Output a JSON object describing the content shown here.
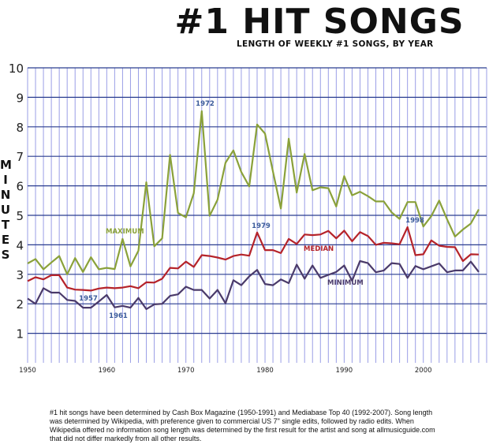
{
  "title": "#1 HIT SONGS",
  "subtitle": "LENGTH OF WEEKLY #1 SONGS, BY YEAR",
  "y_axis_label": "MINUTES",
  "footnote": "#1 hit songs have been determined by Cash Box Magazine (1950-1991) and Mediabase Top 40 (1992-2007). Song length was determined by Wikipedia, with preference given to commercial US 7\" single edits, followed by radio edits. When Wikipedia offered no information song length was determined by the first result for the artist and song at allmusicguide.com that did not differ markedly from all other results.",
  "colors": {
    "maximum": "#8aa13a",
    "median": "#b5232a",
    "minimum": "#4a3a6a",
    "grid": "#9a9ee6",
    "hgrid": "#2a3d8f",
    "annotation": "#3a5a9a"
  },
  "chart_data": {
    "type": "line",
    "xlim": [
      1950,
      2008
    ],
    "ylim": [
      0,
      10
    ],
    "x_ticks": [
      1950,
      1960,
      1970,
      1980,
      1990,
      2000
    ],
    "y_ticks": [
      1,
      2,
      3,
      4,
      5,
      6,
      7,
      8,
      9,
      10
    ],
    "x": [
      1950,
      1951,
      1952,
      1953,
      1954,
      1955,
      1956,
      1957,
      1958,
      1959,
      1960,
      1961,
      1962,
      1963,
      1964,
      1965,
      1966,
      1967,
      1968,
      1969,
      1970,
      1971,
      1972,
      1973,
      1974,
      1975,
      1976,
      1977,
      1978,
      1979,
      1980,
      1981,
      1982,
      1983,
      1984,
      1985,
      1986,
      1987,
      1988,
      1989,
      1990,
      1991,
      1992,
      1993,
      1994,
      1995,
      1996,
      1997,
      1998,
      1999,
      2000,
      2001,
      2002,
      2003,
      2004,
      2005,
      2006,
      2007
    ],
    "series": [
      {
        "name": "MAXIMUM",
        "key": "maximum",
        "values": [
          3.37,
          3.52,
          3.17,
          3.4,
          3.62,
          3.0,
          3.55,
          3.08,
          3.58,
          3.17,
          3.22,
          3.18,
          4.2,
          3.27,
          3.8,
          6.12,
          3.95,
          4.22,
          7.05,
          5.08,
          4.93,
          5.75,
          8.53,
          4.98,
          5.53,
          6.78,
          7.2,
          6.47,
          5.98,
          8.08,
          7.77,
          6.48,
          5.23,
          7.6,
          5.77,
          7.08,
          5.85,
          5.95,
          5.92,
          5.3,
          6.33,
          5.68,
          5.8,
          5.65,
          5.47,
          5.47,
          5.1,
          4.88,
          5.45,
          5.45,
          4.62,
          4.97,
          5.5,
          4.87,
          4.28,
          4.52,
          4.72,
          5.2
        ]
      },
      {
        "name": "MEDIAN",
        "key": "median",
        "values": [
          2.77,
          2.9,
          2.83,
          2.97,
          2.97,
          2.55,
          2.48,
          2.47,
          2.45,
          2.52,
          2.55,
          2.53,
          2.55,
          2.6,
          2.53,
          2.73,
          2.72,
          2.85,
          3.22,
          3.2,
          3.43,
          3.25,
          3.65,
          3.62,
          3.57,
          3.5,
          3.62,
          3.67,
          3.63,
          4.42,
          3.82,
          3.82,
          3.72,
          4.2,
          4.03,
          4.35,
          4.33,
          4.35,
          4.47,
          4.22,
          4.48,
          4.12,
          4.43,
          4.3,
          4.0,
          4.07,
          4.05,
          4.02,
          4.6,
          3.65,
          3.68,
          4.15,
          3.97,
          3.93,
          3.92,
          3.45,
          3.68,
          3.67
        ]
      },
      {
        "name": "MINIMUM",
        "key": "minimum",
        "values": [
          2.18,
          2.0,
          2.53,
          2.38,
          2.38,
          2.13,
          2.1,
          1.87,
          1.87,
          2.08,
          2.3,
          1.88,
          1.93,
          1.87,
          2.2,
          1.82,
          1.98,
          2.0,
          2.27,
          2.32,
          2.58,
          2.47,
          2.47,
          2.18,
          2.47,
          2.02,
          2.8,
          2.63,
          2.93,
          3.15,
          2.67,
          2.63,
          2.83,
          2.7,
          3.33,
          2.85,
          3.3,
          2.88,
          2.98,
          3.08,
          3.3,
          2.78,
          3.45,
          3.38,
          3.07,
          3.13,
          3.38,
          3.35,
          2.88,
          3.28,
          3.17,
          3.27,
          3.37,
          3.07,
          3.13,
          3.13,
          3.43,
          3.08
        ]
      }
    ],
    "annotations": [
      {
        "text": "MAXIMUM",
        "series": "maximum"
      },
      {
        "text": "MEDIAN",
        "series": "median"
      },
      {
        "text": "MINIMUM",
        "series": "minimum"
      },
      {
        "text": "1972"
      },
      {
        "text": "1979"
      },
      {
        "text": "1998"
      },
      {
        "text": "1957"
      },
      {
        "text": "1961"
      }
    ]
  }
}
